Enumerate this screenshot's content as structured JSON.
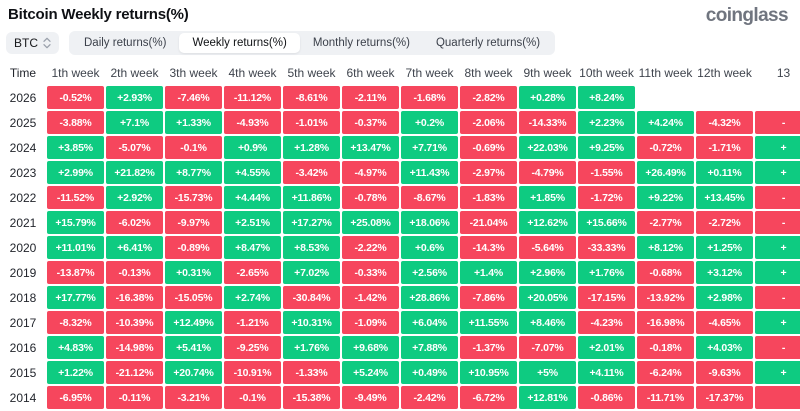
{
  "header": {
    "title": "Bitcoin Weekly returns(%)",
    "logo": "coinglass"
  },
  "controls": {
    "coin_selector": {
      "label": "BTC",
      "icon": "up-down-chevrons-icon"
    },
    "tabs": [
      {
        "label": "Daily returns(%)",
        "active": false
      },
      {
        "label": "Weekly returns(%)",
        "active": true
      },
      {
        "label": "Monthly returns(%)",
        "active": false
      },
      {
        "label": "Quarterly returns(%)",
        "active": false
      }
    ]
  },
  "colors": {
    "positive": "#0ECB81",
    "negative": "#F6465D"
  },
  "chart_data": {
    "type": "heatmap",
    "title": "Bitcoin Weekly returns(%)",
    "time_label": "Time",
    "columns": [
      "1th week",
      "2th week",
      "3th week",
      "4th week",
      "5th week",
      "6th week",
      "7th week",
      "8th week",
      "9th week",
      "10th week",
      "11th week",
      "12th week",
      "13"
    ],
    "rows": [
      {
        "year": "2026",
        "values": [
          "-0.52%",
          "+2.93%",
          "-7.46%",
          "-11.12%",
          "-8.61%",
          "-2.11%",
          "-1.68%",
          "-2.82%",
          "+0.28%",
          "+8.24%",
          null,
          null
        ],
        "week13": null
      },
      {
        "year": "2025",
        "values": [
          "-3.88%",
          "+7.1%",
          "+1.33%",
          "-4.93%",
          "-1.01%",
          "-0.37%",
          "+0.2%",
          "-2.06%",
          "-14.33%",
          "+2.23%",
          "+4.24%",
          "-4.32%"
        ],
        "week13": {
          "text": "-",
          "positive": false
        }
      },
      {
        "year": "2024",
        "values": [
          "+3.85%",
          "-5.07%",
          "-0.1%",
          "+0.9%",
          "+1.28%",
          "+13.47%",
          "+7.71%",
          "-0.69%",
          "+22.03%",
          "+9.25%",
          "-0.72%",
          "-1.71%"
        ],
        "week13": {
          "text": "+",
          "positive": true
        }
      },
      {
        "year": "2023",
        "values": [
          "+2.99%",
          "+21.82%",
          "+8.77%",
          "+4.55%",
          "-3.42%",
          "-4.97%",
          "+11.43%",
          "-2.97%",
          "-4.79%",
          "-1.55%",
          "+26.49%",
          "+0.11%"
        ],
        "week13": {
          "text": "+",
          "positive": true
        }
      },
      {
        "year": "2022",
        "values": [
          "-11.52%",
          "+2.92%",
          "-15.73%",
          "+4.44%",
          "+11.86%",
          "-0.78%",
          "-8.67%",
          "-1.83%",
          "+1.85%",
          "-1.72%",
          "+9.22%",
          "+13.45%"
        ],
        "week13": {
          "text": "-",
          "positive": false
        }
      },
      {
        "year": "2021",
        "values": [
          "+15.79%",
          "-6.02%",
          "-9.97%",
          "+2.51%",
          "+17.27%",
          "+25.08%",
          "+18.06%",
          "-21.04%",
          "+12.62%",
          "+15.66%",
          "-2.77%",
          "-2.72%"
        ],
        "week13": {
          "text": "-",
          "positive": false
        }
      },
      {
        "year": "2020",
        "values": [
          "+11.01%",
          "+6.41%",
          "-0.89%",
          "+8.47%",
          "+8.53%",
          "-2.22%",
          "+0.6%",
          "-14.3%",
          "-5.64%",
          "-33.33%",
          "+8.12%",
          "+1.25%"
        ],
        "week13": {
          "text": "+",
          "positive": true
        }
      },
      {
        "year": "2019",
        "values": [
          "-13.87%",
          "-0.13%",
          "+0.31%",
          "-2.65%",
          "+7.02%",
          "-0.33%",
          "+2.56%",
          "+1.4%",
          "+2.96%",
          "+1.76%",
          "-0.68%",
          "+3.12%"
        ],
        "week13": {
          "text": "+",
          "positive": true
        }
      },
      {
        "year": "2018",
        "values": [
          "+17.77%",
          "-16.38%",
          "-15.05%",
          "+2.74%",
          "-30.84%",
          "-1.42%",
          "+28.86%",
          "-7.86%",
          "+20.05%",
          "-17.15%",
          "-13.92%",
          "+2.98%"
        ],
        "week13": {
          "text": "-",
          "positive": false
        }
      },
      {
        "year": "2017",
        "values": [
          "-8.32%",
          "-10.39%",
          "+12.49%",
          "-1.21%",
          "+10.31%",
          "-1.09%",
          "+6.04%",
          "+11.55%",
          "+8.46%",
          "-4.23%",
          "-16.98%",
          "-4.65%"
        ],
        "week13": {
          "text": "+",
          "positive": true
        }
      },
      {
        "year": "2016",
        "values": [
          "+4.83%",
          "-14.98%",
          "+5.41%",
          "-9.25%",
          "+1.76%",
          "+9.68%",
          "+7.88%",
          "-1.37%",
          "-7.07%",
          "+2.01%",
          "-0.18%",
          "+4.03%"
        ],
        "week13": {
          "text": "-",
          "positive": false
        }
      },
      {
        "year": "2015",
        "values": [
          "+1.22%",
          "-21.12%",
          "+20.74%",
          "-10.91%",
          "-1.33%",
          "+5.24%",
          "+0.49%",
          "+10.95%",
          "+5%",
          "+4.11%",
          "-6.24%",
          "-9.63%"
        ],
        "week13": {
          "text": "+",
          "positive": true
        }
      },
      {
        "year": "2014",
        "values": [
          "-6.95%",
          "-0.11%",
          "-3.21%",
          "-0.1%",
          "-15.38%",
          "-9.49%",
          "-2.42%",
          "-6.72%",
          "+12.81%",
          "-0.86%",
          "-11.71%",
          "-17.37%"
        ],
        "week13": {
          "text": "",
          "positive": false
        }
      }
    ]
  }
}
